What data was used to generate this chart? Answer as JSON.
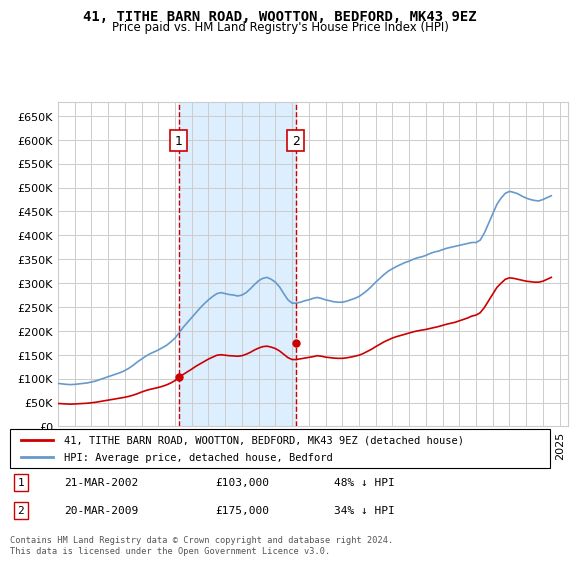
{
  "title": "41, TITHE BARN ROAD, WOOTTON, BEDFORD, MK43 9EZ",
  "subtitle": "Price paid vs. HM Land Registry's House Price Index (HPI)",
  "legend_line1": "41, TITHE BARN ROAD, WOOTTON, BEDFORD, MK43 9EZ (detached house)",
  "legend_line2": "HPI: Average price, detached house, Bedford",
  "transaction1_label": "1",
  "transaction1_date": "21-MAR-2002",
  "transaction1_price": "£103,000",
  "transaction1_hpi": "48% ↓ HPI",
  "transaction2_label": "2",
  "transaction2_date": "20-MAR-2009",
  "transaction2_price": "£175,000",
  "transaction2_hpi": "34% ↓ HPI",
  "footer": "Contains HM Land Registry data © Crown copyright and database right 2024.\nThis data is licensed under the Open Government Licence v3.0.",
  "ylim": [
    0,
    680000
  ],
  "yticks": [
    0,
    50000,
    100000,
    150000,
    200000,
    250000,
    300000,
    350000,
    400000,
    450000,
    500000,
    550000,
    600000,
    650000
  ],
  "xmin": 1995.0,
  "xmax": 2025.5,
  "sale_years": [
    2002.22,
    2009.22
  ],
  "sale_prices": [
    103000,
    175000
  ],
  "red_line_color": "#cc0000",
  "blue_line_color": "#6699cc",
  "shade_color": "#ddeeff",
  "vline_color": "#cc0000",
  "background_color": "#ffffff",
  "grid_color": "#cccccc",
  "hpi_years": [
    1995.0,
    1995.25,
    1995.5,
    1995.75,
    1996.0,
    1996.25,
    1996.5,
    1996.75,
    1997.0,
    1997.25,
    1997.5,
    1997.75,
    1998.0,
    1998.25,
    1998.5,
    1998.75,
    1999.0,
    1999.25,
    1999.5,
    1999.75,
    2000.0,
    2000.25,
    2000.5,
    2000.75,
    2001.0,
    2001.25,
    2001.5,
    2001.75,
    2002.0,
    2002.25,
    2002.5,
    2002.75,
    2003.0,
    2003.25,
    2003.5,
    2003.75,
    2004.0,
    2004.25,
    2004.5,
    2004.75,
    2005.0,
    2005.25,
    2005.5,
    2005.75,
    2006.0,
    2006.25,
    2006.5,
    2006.75,
    2007.0,
    2007.25,
    2007.5,
    2007.75,
    2008.0,
    2008.25,
    2008.5,
    2008.75,
    2009.0,
    2009.25,
    2009.5,
    2009.75,
    2010.0,
    2010.25,
    2010.5,
    2010.75,
    2011.0,
    2011.25,
    2011.5,
    2011.75,
    2012.0,
    2012.25,
    2012.5,
    2012.75,
    2013.0,
    2013.25,
    2013.5,
    2013.75,
    2014.0,
    2014.25,
    2014.5,
    2014.75,
    2015.0,
    2015.25,
    2015.5,
    2015.75,
    2016.0,
    2016.25,
    2016.5,
    2016.75,
    2017.0,
    2017.25,
    2017.5,
    2017.75,
    2018.0,
    2018.25,
    2018.5,
    2018.75,
    2019.0,
    2019.25,
    2019.5,
    2019.75,
    2020.0,
    2020.25,
    2020.5,
    2020.75,
    2021.0,
    2021.25,
    2021.5,
    2021.75,
    2022.0,
    2022.25,
    2022.5,
    2022.75,
    2023.0,
    2023.25,
    2023.5,
    2023.75,
    2024.0,
    2024.25,
    2024.5
  ],
  "hpi_values": [
    90000,
    89000,
    88000,
    87500,
    88000,
    89000,
    90000,
    91000,
    93000,
    95000,
    98000,
    101000,
    104000,
    107000,
    110000,
    113000,
    117000,
    122000,
    128000,
    135000,
    141000,
    147000,
    152000,
    156000,
    160000,
    165000,
    170000,
    177000,
    185000,
    196000,
    208000,
    218000,
    228000,
    238000,
    248000,
    257000,
    265000,
    272000,
    278000,
    280000,
    278000,
    276000,
    275000,
    273000,
    275000,
    280000,
    288000,
    297000,
    305000,
    310000,
    312000,
    308000,
    302000,
    292000,
    278000,
    265000,
    258000,
    258000,
    260000,
    263000,
    265000,
    268000,
    270000,
    268000,
    265000,
    263000,
    261000,
    260000,
    260000,
    262000,
    265000,
    268000,
    272000,
    278000,
    285000,
    293000,
    302000,
    310000,
    318000,
    325000,
    330000,
    335000,
    339000,
    343000,
    346000,
    350000,
    353000,
    355000,
    358000,
    362000,
    365000,
    367000,
    370000,
    373000,
    375000,
    377000,
    379000,
    381000,
    383000,
    385000,
    385000,
    390000,
    405000,
    425000,
    445000,
    465000,
    478000,
    488000,
    492000,
    490000,
    487000,
    482000,
    478000,
    475000,
    473000,
    472000,
    475000,
    479000,
    483000
  ],
  "red_years": [
    1995.0,
    1995.25,
    1995.5,
    1995.75,
    1996.0,
    1996.25,
    1996.5,
    1996.75,
    1997.0,
    1997.25,
    1997.5,
    1997.75,
    1998.0,
    1998.25,
    1998.5,
    1998.75,
    1999.0,
    1999.25,
    1999.5,
    1999.75,
    2000.0,
    2000.25,
    2000.5,
    2000.75,
    2001.0,
    2001.25,
    2001.5,
    2001.75,
    2002.0,
    2002.25,
    2002.5,
    2002.75,
    2003.0,
    2003.25,
    2003.5,
    2003.75,
    2004.0,
    2004.25,
    2004.5,
    2004.75,
    2005.0,
    2005.25,
    2005.5,
    2005.75,
    2006.0,
    2006.25,
    2006.5,
    2006.75,
    2007.0,
    2007.25,
    2007.5,
    2007.75,
    2008.0,
    2008.25,
    2008.5,
    2008.75,
    2009.0,
    2009.25,
    2009.5,
    2009.75,
    2010.0,
    2010.25,
    2010.5,
    2010.75,
    2011.0,
    2011.25,
    2011.5,
    2011.75,
    2012.0,
    2012.25,
    2012.5,
    2012.75,
    2013.0,
    2013.25,
    2013.5,
    2013.75,
    2014.0,
    2014.25,
    2014.5,
    2014.75,
    2015.0,
    2015.25,
    2015.5,
    2015.75,
    2016.0,
    2016.25,
    2016.5,
    2016.75,
    2017.0,
    2017.25,
    2017.5,
    2017.75,
    2018.0,
    2018.25,
    2018.5,
    2018.75,
    2019.0,
    2019.25,
    2019.5,
    2019.75,
    2020.0,
    2020.25,
    2020.5,
    2020.75,
    2021.0,
    2021.25,
    2021.5,
    2021.75,
    2022.0,
    2022.25,
    2022.5,
    2022.75,
    2023.0,
    2023.25,
    2023.5,
    2023.75,
    2024.0,
    2024.25,
    2024.5
  ],
  "red_values": [
    48000,
    47500,
    47000,
    46500,
    47000,
    47500,
    48000,
    48500,
    49500,
    50500,
    52000,
    53500,
    55000,
    56500,
    58000,
    59500,
    61000,
    63000,
    65500,
    68500,
    72000,
    75000,
    77500,
    79500,
    81500,
    84000,
    87000,
    91000,
    96000,
    103000,
    109000,
    114500,
    120000,
    126000,
    131000,
    136000,
    141000,
    145000,
    149000,
    150000,
    149000,
    148000,
    147500,
    147000,
    148000,
    151000,
    155000,
    160000,
    164000,
    167000,
    168000,
    166000,
    163000,
    158000,
    151000,
    144000,
    140000,
    140000,
    141500,
    143000,
    144500,
    146000,
    148000,
    147000,
    145000,
    144000,
    143000,
    142500,
    142500,
    143500,
    145000,
    147000,
    149000,
    152500,
    157000,
    161500,
    167000,
    172000,
    177000,
    181000,
    185000,
    188000,
    190500,
    193000,
    195500,
    198000,
    200000,
    201500,
    203000,
    205000,
    207000,
    209000,
    211500,
    214000,
    216000,
    218000,
    221000,
    224000,
    227000,
    231000,
    233000,
    238000,
    249000,
    263000,
    277000,
    291000,
    300000,
    308000,
    311000,
    310000,
    308000,
    306000,
    304000,
    303000,
    302000,
    302000,
    304000,
    308000,
    312000
  ]
}
